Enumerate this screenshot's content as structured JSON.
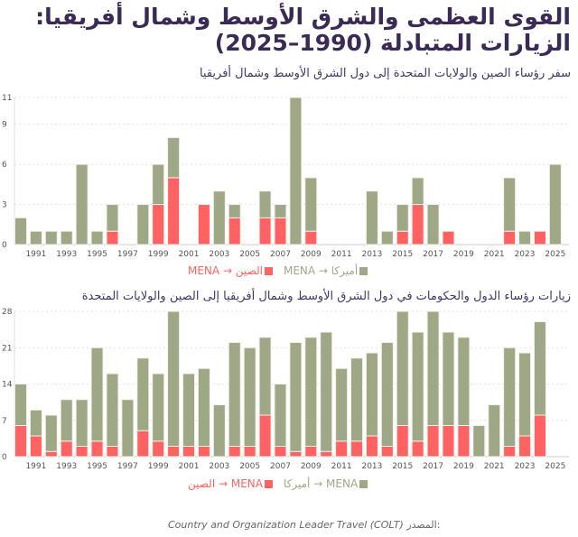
{
  "title_line1": "القوى العظمى والشرق الأوسط وشمال أفريقيا:",
  "title_line2": "الزيارات المتبادلة (1990–2025)",
  "source_label": "المصدر:",
  "source_text": "Country and Organization Leader Travel (COLT)",
  "colors": {
    "usa": "#9fa886",
    "china": "#ff6262",
    "title": "#3a2a55"
  },
  "chart_data": [
    {
      "type": "bar",
      "stacked": true,
      "title": "سفر رؤساء الصين والولايات المتحدة إلى دول الشرق الأوسط وشمال أفريقيا",
      "legend": [
        "أميركا → MENA",
        "الصين → MENA"
      ],
      "x": [
        1990,
        1991,
        1992,
        1993,
        1994,
        1995,
        1996,
        1997,
        1998,
        1999,
        2000,
        2001,
        2002,
        2003,
        2004,
        2005,
        2006,
        2007,
        2008,
        2009,
        2010,
        2011,
        2012,
        2013,
        2014,
        2015,
        2016,
        2017,
        2018,
        2019,
        2020,
        2021,
        2022,
        2023,
        2024,
        2025
      ],
      "xticks": [
        "1991",
        "1993",
        "1995",
        "1997",
        "1999",
        "2001",
        "2003",
        "2005",
        "2007",
        "2009",
        "2011",
        "2013",
        "2015",
        "2017",
        "2019",
        "2021",
        "2023",
        "2025"
      ],
      "yticks": [
        0,
        3,
        6,
        9,
        11
      ],
      "ylim": [
        0,
        11
      ],
      "series": [
        {
          "name": "الصين → MENA",
          "values": [
            0,
            0,
            0,
            0,
            0,
            0,
            1,
            0,
            0,
            3,
            5,
            0,
            3,
            0,
            2,
            0,
            2,
            2,
            0,
            1,
            0,
            0,
            0,
            0,
            0,
            1,
            3,
            0,
            1,
            0,
            0,
            0,
            1,
            0,
            1,
            0
          ]
        },
        {
          "name": "أميركا → MENA",
          "values": [
            2,
            1,
            1,
            1,
            6,
            1,
            2,
            0,
            3,
            3,
            3,
            0,
            0,
            4,
            1,
            0,
            2,
            1,
            11,
            4,
            0,
            0,
            0,
            4,
            1,
            2,
            2,
            3,
            0,
            0,
            0,
            0,
            4,
            1,
            0,
            6
          ]
        }
      ]
    },
    {
      "type": "bar",
      "stacked": true,
      "title": "زيارات رؤساء الدول والحكومات في دول الشرق الأوسط وشمال أفريقيا إلى الصين والولايات المتحدة",
      "legend": [
        "MENA → أميركا",
        "MENA → الصين"
      ],
      "x": [
        1990,
        1991,
        1992,
        1993,
        1994,
        1995,
        1996,
        1997,
        1998,
        1999,
        2000,
        2001,
        2002,
        2003,
        2004,
        2005,
        2006,
        2007,
        2008,
        2009,
        2010,
        2011,
        2012,
        2013,
        2014,
        2015,
        2016,
        2017,
        2018,
        2019,
        2020,
        2021,
        2022,
        2023,
        2024
      ],
      "xticks": [
        "1991",
        "1993",
        "1995",
        "1997",
        "1999",
        "2001",
        "2003",
        "2005",
        "2007",
        "2009",
        "2011",
        "2013",
        "2015",
        "2017",
        "2019",
        "2021",
        "2023",
        "2025"
      ],
      "yticks": [
        0,
        7,
        14,
        21,
        28
      ],
      "ylim": [
        0,
        28
      ],
      "series": [
        {
          "name": "MENA → الصين",
          "values": [
            6,
            4,
            1,
            3,
            2,
            3,
            2,
            0,
            5,
            3,
            2,
            2,
            2,
            0,
            2,
            2,
            8,
            2,
            1,
            2,
            1,
            3,
            3,
            4,
            2,
            6,
            3,
            6,
            6,
            6,
            0,
            0,
            2,
            4,
            8
          ]
        },
        {
          "name": "MENA → أميركا",
          "values": [
            8,
            5,
            7,
            8,
            9,
            18,
            14,
            11,
            14,
            13,
            26,
            14,
            15,
            10,
            20,
            19,
            15,
            12,
            21,
            21,
            23,
            14,
            16,
            16,
            20,
            22,
            21,
            22,
            18,
            17,
            6,
            10,
            19,
            16,
            18
          ]
        }
      ]
    }
  ]
}
